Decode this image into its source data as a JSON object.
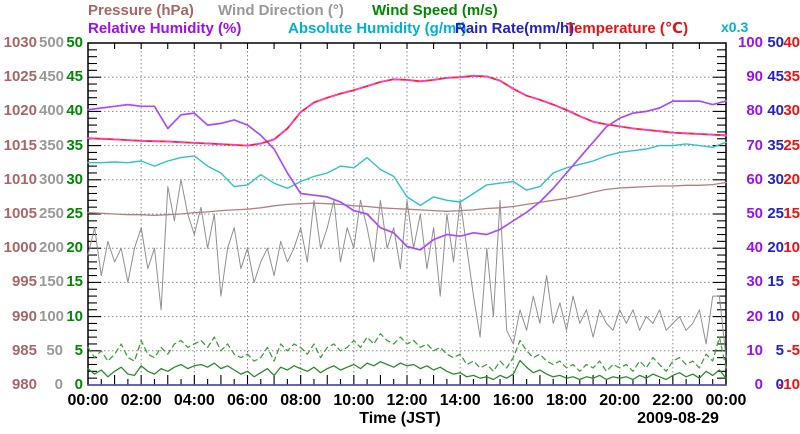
{
  "legend": {
    "line1": [
      {
        "label": "Pressure (hPa)",
        "color": "#aa6666"
      },
      {
        "label": "Wind Direction (°)",
        "color": "#999999"
      },
      {
        "label": "Wind Speed (m/s)",
        "color": "#008800"
      }
    ],
    "line2": [
      {
        "label": "Relative Humidity (%)",
        "color": "#9911ee"
      },
      {
        "label": "Absolute Humidity (g/m³)",
        "color": "#00b2cc"
      },
      {
        "label": "Rain Rate(mm/h)",
        "color": "#2222cc"
      },
      {
        "label": "Temperature (℃)",
        "color": "#ee1111"
      }
    ]
  },
  "axes": {
    "x": {
      "label": "Time (JST)",
      "date": "2009-08-29",
      "ticks": [
        "00:00",
        "02:00",
        "04:00",
        "06:00",
        "08:00",
        "10:00",
        "12:00",
        "14:00",
        "16:00",
        "18:00",
        "20:00",
        "22:00",
        "00:00"
      ]
    },
    "scale_note": {
      "text": "x0.3",
      "color": "#00b2cc",
      "applies_to": "Absolute Humidity axis: g/m³ = axis value × 0.3"
    },
    "left_columns": [
      {
        "name": "pressure",
        "unit": "hPa",
        "color": "#aa6666",
        "ticks": [
          "1030",
          "1025",
          "1020",
          "1015",
          "1010",
          "1005",
          "1000",
          "995",
          "990",
          "985",
          "980"
        ]
      },
      {
        "name": "wind-direction",
        "unit": "deg",
        "color": "#999999",
        "ticks": [
          "500",
          "450",
          "400",
          "350",
          "300",
          "250",
          "200",
          "150",
          "100",
          "50",
          "0"
        ]
      },
      {
        "name": "wind-speed",
        "unit": "m/s",
        "color": "#008800",
        "ticks": [
          "50",
          "45",
          "40",
          "35",
          "30",
          "25",
          "20",
          "15",
          "10",
          "5",
          "0"
        ]
      }
    ],
    "right_columns": [
      {
        "name": "relative-humidity",
        "unit": "%",
        "color": "#9911ee",
        "ticks": [
          "100",
          "90",
          "80",
          "70",
          "60",
          "50",
          "40",
          "30",
          "20",
          "10",
          "0"
        ]
      },
      {
        "name": "rain-rate",
        "unit": "mm/h",
        "color": "#2222cc",
        "ticks": [
          "50",
          "45",
          "40",
          "35",
          "30",
          "25",
          "20",
          "15",
          "10",
          "5",
          "0"
        ]
      },
      {
        "name": "temperature",
        "unit": "°C",
        "color": "#ee1111",
        "ticks": [
          "40",
          "35",
          "30",
          "25",
          "20",
          "15",
          "10",
          "5",
          "0",
          "-5",
          "-10"
        ]
      }
    ]
  },
  "chart_data": {
    "type": "line",
    "title": "",
    "xlabel": "Time (JST)",
    "date": "2009-08-29",
    "x_range_hours": [
      0,
      24
    ],
    "x_gridlines_every_hours": 2,
    "grid": true,
    "legend_position": "top",
    "series": [
      {
        "name": "Pressure",
        "unit": "hPa",
        "color": "#b38080",
        "axis": [
          980,
          1030
        ],
        "stroke_width": 1.3,
        "dashed": false,
        "t_start": 0,
        "t_step": 0.5,
        "values": [
          1005.2,
          1005.1,
          1005.0,
          1004.9,
          1004.9,
          1004.8,
          1004.9,
          1005.0,
          1005.2,
          1005.3,
          1005.5,
          1005.6,
          1005.7,
          1005.9,
          1006.2,
          1006.4,
          1006.5,
          1006.6,
          1006.5,
          1006.4,
          1006.2,
          1006.1,
          1005.9,
          1005.8,
          1005.7,
          1005.6,
          1005.5,
          1005.4,
          1005.5,
          1005.6,
          1005.8,
          1005.9,
          1006.1,
          1006.4,
          1006.7,
          1007.0,
          1007.3,
          1007.7,
          1008.2,
          1008.6,
          1008.8,
          1008.9,
          1009.0,
          1009.1,
          1009.1,
          1009.2,
          1009.2,
          1009.3,
          1009.6
        ]
      },
      {
        "name": "Wind Direction",
        "unit": "deg",
        "color": "#909090",
        "axis": [
          0,
          500
        ],
        "stroke_width": 1,
        "dashed": false,
        "t_start": 0,
        "t_step": 0.25,
        "values": [
          190,
          230,
          160,
          210,
          180,
          200,
          150,
          200,
          230,
          170,
          200,
          110,
          290,
          240,
          300,
          250,
          220,
          260,
          200,
          250,
          130,
          200,
          230,
          170,
          200,
          150,
          180,
          200,
          160,
          210,
          180,
          200,
          230,
          180,
          270,
          200,
          230,
          270,
          180,
          230,
          200,
          270,
          230,
          180,
          270,
          200,
          230,
          170,
          270,
          200,
          250,
          170,
          230,
          130,
          250,
          180,
          270,
          200,
          130,
          70,
          200,
          100,
          270,
          80,
          60,
          110,
          80,
          130,
          90,
          160,
          90,
          120,
          80,
          130,
          90,
          110,
          70,
          110,
          90,
          80,
          110,
          90,
          110,
          80,
          100,
          90,
          110,
          80,
          90,
          100,
          80,
          90,
          110,
          60,
          130,
          130,
          40
        ]
      },
      {
        "name": "Wind Gust",
        "unit": "m/s",
        "color": "#3fa03f",
        "axis": [
          0,
          50
        ],
        "stroke_width": 1.3,
        "dashed": true,
        "t_start": 0,
        "t_step": 0.25,
        "values": [
          5.5,
          4.0,
          5.0,
          3.5,
          4.5,
          6.0,
          4.0,
          3.5,
          6.5,
          4.5,
          4.0,
          5.5,
          4.5,
          6.0,
          6.5,
          5.5,
          6.0,
          6.5,
          5.5,
          7.0,
          5.0,
          6.0,
          4.5,
          4.0,
          4.5,
          3.5,
          4.0,
          5.5,
          3.5,
          6.0,
          5.0,
          6.0,
          5.5,
          4.5,
          6.0,
          4.0,
          5.5,
          6.0,
          5.0,
          5.5,
          6.5,
          5.5,
          7.0,
          6.0,
          7.5,
          6.5,
          6.0,
          7.0,
          6.0,
          6.5,
          5.5,
          6.0,
          5.0,
          5.5,
          4.5,
          4.0,
          4.5,
          3.0,
          3.5,
          2.5,
          3.0,
          2.0,
          3.5,
          2.5,
          4.0,
          6.5,
          5.0,
          4.0,
          4.5,
          3.5,
          3.0,
          3.5,
          2.5,
          3.0,
          2.0,
          3.0,
          2.5,
          3.5,
          2.0,
          3.0,
          2.5,
          3.0,
          2.0,
          3.5,
          2.5,
          4.0,
          3.0,
          2.0,
          3.5,
          4.0,
          3.0,
          3.5,
          2.5,
          4.5,
          3.5,
          7.0,
          2.5
        ]
      },
      {
        "name": "Wind Speed",
        "unit": "m/s",
        "color": "#2d8a2d",
        "axis": [
          0,
          50
        ],
        "stroke_width": 1.3,
        "dashed": false,
        "t_start": 0,
        "t_step": 0.25,
        "values": [
          2.4,
          1.6,
          2.2,
          1.2,
          2.0,
          2.6,
          1.6,
          1.4,
          2.8,
          2.0,
          1.6,
          2.4,
          2.0,
          2.6,
          3.0,
          2.4,
          2.8,
          3.0,
          2.6,
          3.2,
          2.4,
          2.8,
          2.2,
          1.6,
          2.0,
          1.2,
          1.8,
          2.4,
          1.4,
          2.6,
          2.2,
          2.8,
          2.4,
          2.0,
          2.6,
          1.8,
          2.4,
          2.8,
          2.2,
          2.6,
          3.0,
          2.4,
          3.2,
          2.8,
          3.4,
          3.0,
          2.6,
          3.2,
          2.8,
          3.0,
          2.4,
          2.8,
          2.2,
          2.6,
          2.0,
          1.6,
          1.8,
          1.2,
          1.4,
          1.0,
          1.2,
          0.8,
          1.4,
          1.0,
          1.6,
          3.6,
          2.6,
          1.8,
          2.2,
          1.6,
          1.2,
          1.4,
          1.0,
          1.2,
          0.8,
          1.2,
          1.0,
          1.4,
          0.8,
          1.2,
          1.0,
          1.2,
          0.8,
          1.4,
          1.0,
          1.6,
          1.2,
          0.8,
          1.4,
          1.8,
          1.2,
          1.6,
          1.0,
          2.0,
          1.4,
          2.2,
          1.0
        ]
      },
      {
        "name": "Rain Rate",
        "unit": "mm/h",
        "color": "#5c5ccc",
        "axis": [
          0,
          50
        ],
        "stroke_width": 1.6,
        "dashed": false,
        "t_start": 0,
        "t_step": 0.5,
        "values": [
          0,
          0,
          0,
          0,
          0,
          0,
          0,
          0,
          0,
          0,
          0,
          0,
          0,
          0,
          0,
          0,
          0,
          0,
          0,
          0,
          0,
          0,
          0,
          0,
          0,
          0,
          0,
          0,
          0,
          0,
          0,
          0,
          0,
          0,
          0,
          0,
          0,
          0,
          0,
          0,
          0,
          0,
          0,
          0,
          0,
          0,
          0,
          0,
          0
        ]
      },
      {
        "name": "Absolute Humidity",
        "unit": "axis % (g/m³ = value × 0.3)",
        "color": "#2fc4c4",
        "axis": [
          0,
          100
        ],
        "stroke_width": 1.4,
        "dashed": false,
        "t_start": 0,
        "t_step": 0.5,
        "values": [
          65,
          65,
          65.2,
          65,
          65.5,
          64,
          65.5,
          66.5,
          67,
          64,
          62,
          58,
          58.5,
          61.5,
          59,
          57.5,
          59.5,
          61,
          62,
          64,
          63.5,
          66.5,
          63,
          61,
          55,
          52.5,
          55,
          54,
          53.5,
          56,
          58.5,
          59,
          59.5,
          57,
          58,
          62,
          63.5,
          64.5,
          65.5,
          67,
          68,
          68.5,
          69,
          70,
          70,
          70.5,
          70,
          69.5,
          71
        ]
      },
      {
        "name": "Relative Humidity",
        "unit": "%",
        "color": "#a64dff",
        "axis": [
          0,
          100
        ],
        "stroke_width": 1.7,
        "dashed": false,
        "t_start": 0,
        "t_step": 0.5,
        "values": [
          80.5,
          81,
          81.5,
          82,
          81.5,
          81.5,
          75,
          79,
          79.5,
          76,
          76.5,
          77.5,
          76,
          73,
          69,
          62,
          56,
          55.5,
          55,
          53.5,
          51,
          50,
          46,
          44.5,
          40.5,
          39.5,
          42.5,
          44,
          43.5,
          44.5,
          44,
          45.5,
          48,
          50.5,
          53.5,
          57.5,
          62,
          66.5,
          71,
          75.5,
          78,
          79.5,
          80,
          81,
          83,
          83,
          83,
          82,
          83
        ]
      },
      {
        "name": "Temperature",
        "unit": "°C",
        "color": "#ff2030",
        "axis": [
          -10,
          40
        ],
        "stroke_width": 1.8,
        "dashed": false,
        "overlay_dash_color": "#ff40c0",
        "t_start": 0,
        "t_step": 0.5,
        "values": [
          26.1,
          26.0,
          25.9,
          25.8,
          25.7,
          25.65,
          25.6,
          25.5,
          25.4,
          25.3,
          25.2,
          25.1,
          25.0,
          25.3,
          25.9,
          27.5,
          29.9,
          31.3,
          32.0,
          32.6,
          33.1,
          33.7,
          34.3,
          34.7,
          34.6,
          34.4,
          34.6,
          34.9,
          35.0,
          35.2,
          35.1,
          34.5,
          33.3,
          32.3,
          31.7,
          31.0,
          30.2,
          29.3,
          28.5,
          28.1,
          27.8,
          27.5,
          27.3,
          27.1,
          26.9,
          26.8,
          26.7,
          26.6,
          26.5
        ]
      }
    ]
  }
}
